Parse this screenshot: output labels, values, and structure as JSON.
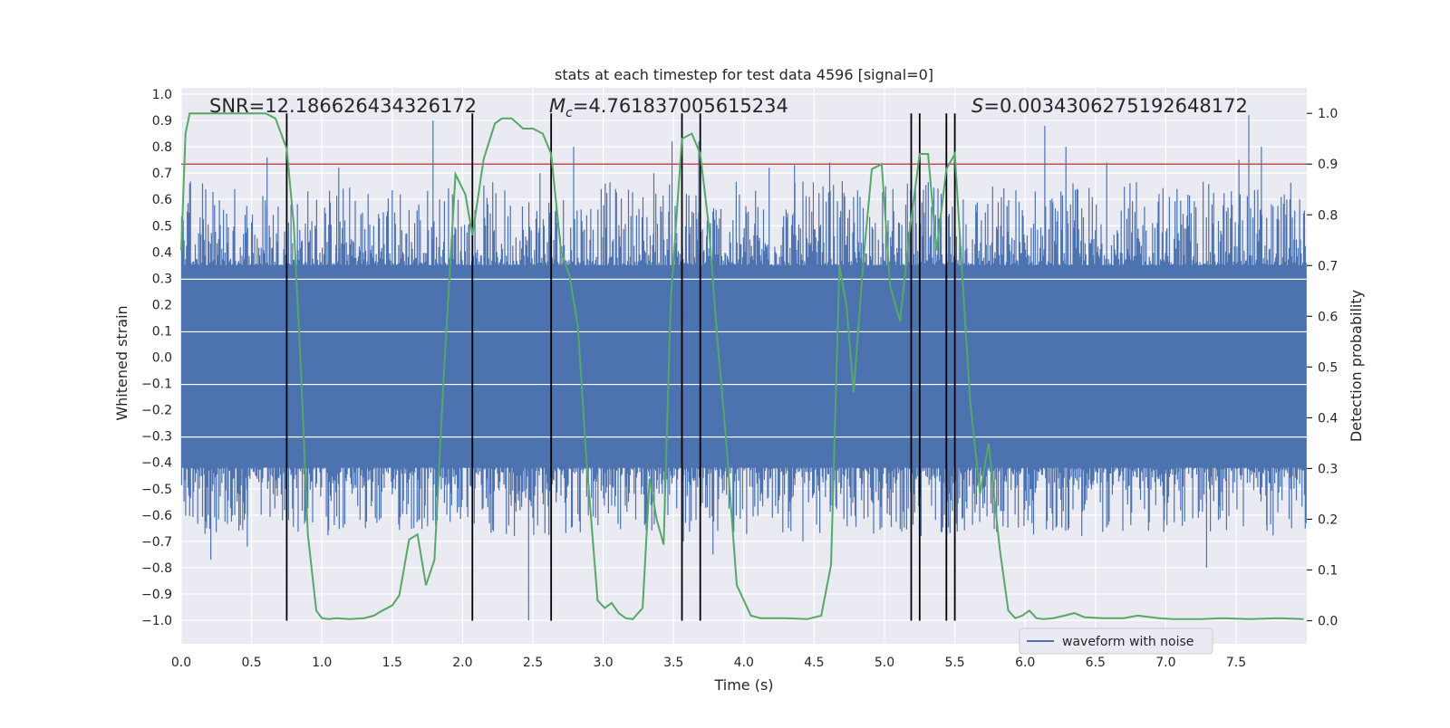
{
  "chart_data": {
    "type": "line",
    "title": "stats at each timestep for test data 4596 [signal=0]",
    "xlabel": "Time (s)",
    "ylabel": "Whitened strain",
    "y2label": "Detection probability",
    "xlim": [
      0.0,
      8.0
    ],
    "ylim": [
      -1.09,
      1.04
    ],
    "y2lim": [
      -0.05,
      1.04
    ],
    "x_ticks": [
      0.0,
      0.5,
      1.0,
      1.5,
      2.0,
      2.5,
      3.0,
      3.5,
      4.0,
      4.5,
      5.0,
      5.5,
      6.0,
      6.5,
      7.0,
      7.5
    ],
    "x_tick_labels": [
      "0.0",
      "0.5",
      "1.0",
      "1.5",
      "2.0",
      "2.5",
      "3.0",
      "3.5",
      "4.0",
      "4.5",
      "5.0",
      "5.5",
      "6.0",
      "6.5",
      "7.0",
      "7.5"
    ],
    "y_ticks": [
      1.0,
      0.9,
      0.8,
      0.7,
      0.6,
      0.5,
      0.4,
      0.3,
      0.2,
      0.1,
      0.0,
      -0.1,
      -0.2,
      -0.3,
      -0.4,
      -0.5,
      -0.6,
      -0.7,
      -0.8,
      -0.9,
      -1.0
    ],
    "y_tick_labels": [
      "1.0",
      "0.9",
      "0.8",
      "0.7",
      "0.6",
      "0.5",
      "0.4",
      "0.3",
      "0.2",
      "0.1",
      "0.0",
      "−0.1",
      "−0.2",
      "−0.3",
      "−0.4",
      "−0.5",
      "−0.6",
      "−0.7",
      "−0.8",
      "−0.9",
      "−1.0"
    ],
    "y2_ticks": [
      1.0,
      0.9,
      0.8,
      0.7,
      0.6,
      0.5,
      0.4,
      0.3,
      0.2,
      0.1,
      0.0
    ],
    "y2_tick_labels": [
      "1.0",
      "0.9",
      "0.8",
      "0.7",
      "0.6",
      "0.5",
      "0.4",
      "0.3",
      "0.2",
      "0.1",
      "0.0"
    ],
    "annotations": {
      "snr": "SNR=12.186626434326172",
      "mc_symbol": "M",
      "mc_sub": "c",
      "mc_value": "=4.761837005615234",
      "s_symbol": "S",
      "s_value": "=0.0034306275192648172"
    },
    "legend": {
      "label": "waveform with noise",
      "position": "lower-right"
    },
    "threshold_y2": 0.9,
    "vertical_lines_x": [
      0.75,
      2.07,
      2.63,
      3.56,
      3.69,
      5.19,
      5.25,
      5.44,
      5.5
    ],
    "waveform": {
      "name": "waveform with noise",
      "duration_s": 8.0,
      "band_low": -0.42,
      "band_high": 0.35,
      "spikes": [
        [
          0.06,
          0.66
        ],
        [
          0.21,
          -0.77
        ],
        [
          0.3,
          0.56
        ],
        [
          0.41,
          -0.66
        ],
        [
          0.47,
          -0.72
        ],
        [
          0.61,
          0.76
        ],
        [
          0.72,
          -0.62
        ],
        [
          1.12,
          0.72
        ],
        [
          1.31,
          -0.65
        ],
        [
          1.79,
          0.9
        ],
        [
          1.82,
          -0.62
        ],
        [
          2.47,
          -1.0
        ],
        [
          2.55,
          0.7
        ],
        [
          2.62,
          0.55
        ],
        [
          2.79,
          0.8
        ],
        [
          3.36,
          0.7
        ],
        [
          3.49,
          0.82
        ],
        [
          3.57,
          -0.7
        ],
        [
          3.68,
          0.82
        ],
        [
          3.78,
          -0.75
        ],
        [
          4.18,
          0.72
        ],
        [
          4.36,
          0.73
        ],
        [
          4.42,
          -0.7
        ],
        [
          4.61,
          0.74
        ],
        [
          5.26,
          -0.68
        ],
        [
          5.56,
          0.6
        ],
        [
          6.14,
          0.88
        ],
        [
          6.29,
          0.8
        ],
        [
          6.58,
          0.74
        ],
        [
          6.99,
          -0.62
        ],
        [
          7.08,
          0.64
        ],
        [
          7.29,
          -0.8
        ],
        [
          7.52,
          0.75
        ],
        [
          7.59,
          0.92
        ],
        [
          7.68,
          0.8
        ],
        [
          7.72,
          -0.66
        ],
        [
          7.86,
          0.6
        ]
      ]
    },
    "series": [
      {
        "color": "#55a868",
        "axis": "right",
        "x": [
          0.0,
          0.03,
          0.06,
          0.1,
          0.2,
          0.3,
          0.4,
          0.5,
          0.6,
          0.67,
          0.75,
          0.8,
          0.85,
          0.9,
          0.96,
          1.0,
          1.05,
          1.1,
          1.2,
          1.3,
          1.37,
          1.43,
          1.5,
          1.55,
          1.62,
          1.68,
          1.74,
          1.8,
          1.87,
          1.95,
          2.02,
          2.07,
          2.15,
          2.23,
          2.28,
          2.35,
          2.43,
          2.5,
          2.57,
          2.63,
          2.7,
          2.76,
          2.82,
          2.88,
          2.96,
          3.01,
          3.06,
          3.11,
          3.16,
          3.21,
          3.28,
          3.33,
          3.38,
          3.43,
          3.48,
          3.56,
          3.63,
          3.69,
          3.75,
          3.81,
          3.87,
          3.95,
          4.05,
          4.12,
          4.2,
          4.3,
          4.45,
          4.55,
          4.62,
          4.68,
          4.73,
          4.78,
          4.85,
          4.91,
          4.98,
          5.04,
          5.11,
          5.18,
          5.25,
          5.31,
          5.37,
          5.44,
          5.5,
          5.56,
          5.61,
          5.68,
          5.74,
          5.82,
          5.88,
          5.93,
          5.98,
          6.03,
          6.08,
          6.13,
          6.2,
          6.28,
          6.35,
          6.42,
          6.55,
          6.7,
          6.8,
          6.95,
          7.05,
          7.25,
          7.4,
          7.6,
          7.8,
          7.98
        ],
        "y": [
          0.73,
          0.96,
          1.0,
          1.0,
          1.0,
          1.0,
          1.0,
          1.0,
          1.0,
          0.99,
          0.93,
          0.78,
          0.5,
          0.17,
          0.02,
          0.005,
          0.003,
          0.005,
          0.003,
          0.005,
          0.01,
          0.02,
          0.03,
          0.05,
          0.16,
          0.17,
          0.07,
          0.12,
          0.5,
          0.88,
          0.84,
          0.76,
          0.91,
          0.98,
          0.99,
          0.99,
          0.97,
          0.97,
          0.96,
          0.92,
          0.73,
          0.68,
          0.58,
          0.32,
          0.04,
          0.025,
          0.035,
          0.015,
          0.005,
          0.003,
          0.025,
          0.28,
          0.2,
          0.15,
          0.63,
          0.95,
          0.96,
          0.92,
          0.78,
          0.56,
          0.37,
          0.07,
          0.01,
          0.005,
          0.005,
          0.005,
          0.003,
          0.01,
          0.11,
          0.7,
          0.62,
          0.45,
          0.71,
          0.89,
          0.9,
          0.66,
          0.59,
          0.77,
          0.92,
          0.92,
          0.73,
          0.89,
          0.92,
          0.65,
          0.43,
          0.25,
          0.35,
          0.14,
          0.02,
          0.005,
          0.01,
          0.02,
          0.005,
          0.003,
          0.005,
          0.01,
          0.015,
          0.007,
          0.005,
          0.005,
          0.01,
          0.005,
          0.003,
          0.003,
          0.005,
          0.003,
          0.005,
          0.003
        ]
      }
    ]
  }
}
